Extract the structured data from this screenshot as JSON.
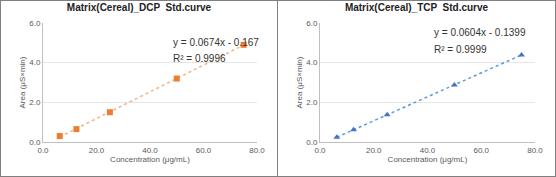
{
  "chart_data": [
    {
      "type": "scatter",
      "title": "Matrix(Cereal)_DCP  Std.curve",
      "x_label": "Concentration (μg/mL)",
      "y_label": "Area (μS×min)",
      "x": [
        6.25,
        12.5,
        25,
        50,
        75
      ],
      "series": [
        {
          "type": "scatter",
          "marker": "square",
          "color": "#ED7D31",
          "values": [
            0.3,
            0.65,
            1.5,
            3.2,
            4.9
          ]
        },
        {
          "type": "line",
          "line_style": "dotted",
          "color": "#F4B183",
          "values": [
            0.25,
            0.68,
            1.52,
            3.2,
            4.89
          ]
        }
      ],
      "annotations": [
        "y = 0.0674x - 0.167",
        "R² = 0.9996"
      ],
      "xlim": [
        0,
        80
      ],
      "xticks": [
        {
          "value": 0,
          "label": "0.0"
        },
        {
          "value": 20,
          "label": "20.0"
        },
        {
          "value": 40,
          "label": "40.0"
        },
        {
          "value": 60,
          "label": "60.0"
        },
        {
          "value": 80,
          "label": "80.0"
        }
      ],
      "ylim": [
        0,
        6
      ],
      "yticks": [
        {
          "value": 0,
          "label": "0.0"
        },
        {
          "value": 2,
          "label": "2.0"
        },
        {
          "value": 4,
          "label": "4.0"
        },
        {
          "value": 6,
          "label": "6.0"
        }
      ],
      "grid": true
    },
    {
      "type": "scatter",
      "title": "Matrix(Cereal)_TCP  Std.curve",
      "x_label": "Concentration (μg/mL)",
      "y_label": "Area (μS×min)",
      "x": [
        6.25,
        12.5,
        25,
        50,
        75
      ],
      "series": [
        {
          "type": "scatter",
          "marker": "triangle",
          "color": "#4472C4",
          "values": [
            0.24,
            0.62,
            1.37,
            2.88,
            4.39
          ]
        },
        {
          "type": "line",
          "line_style": "dotted",
          "color": "#5B9BD5",
          "values": [
            0.24,
            0.62,
            1.37,
            2.88,
            4.39
          ]
        }
      ],
      "annotations": [
        "y = 0.0604x - 0.1399",
        "R² = 0.9999"
      ],
      "xlim": [
        0,
        80
      ],
      "xticks": [
        {
          "value": 0,
          "label": "0.0"
        },
        {
          "value": 20,
          "label": "20.0"
        },
        {
          "value": 40,
          "label": "40.0"
        },
        {
          "value": 60,
          "label": "60.0"
        },
        {
          "value": 80,
          "label": "80.0"
        }
      ],
      "ylim": [
        0,
        6
      ],
      "yticks": [
        {
          "value": 0,
          "label": "0.0"
        },
        {
          "value": 2,
          "label": "2.0"
        },
        {
          "value": 4,
          "label": "4.0"
        },
        {
          "value": 6,
          "label": "6.0"
        }
      ],
      "grid": true
    }
  ]
}
